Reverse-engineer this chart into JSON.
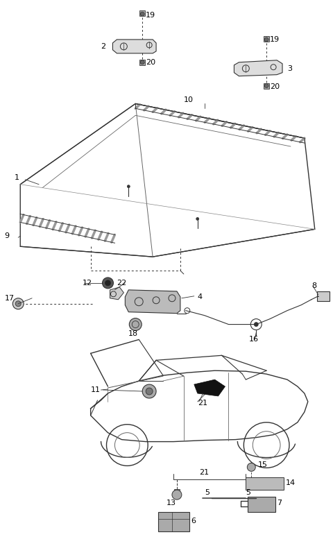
{
  "bg_color": "#ffffff",
  "fig_width": 4.8,
  "fig_height": 7.87,
  "dpi": 100,
  "line_color": "#333333",
  "gray_light": "#cccccc",
  "gray_med": "#888888",
  "gray_dark": "#555555"
}
